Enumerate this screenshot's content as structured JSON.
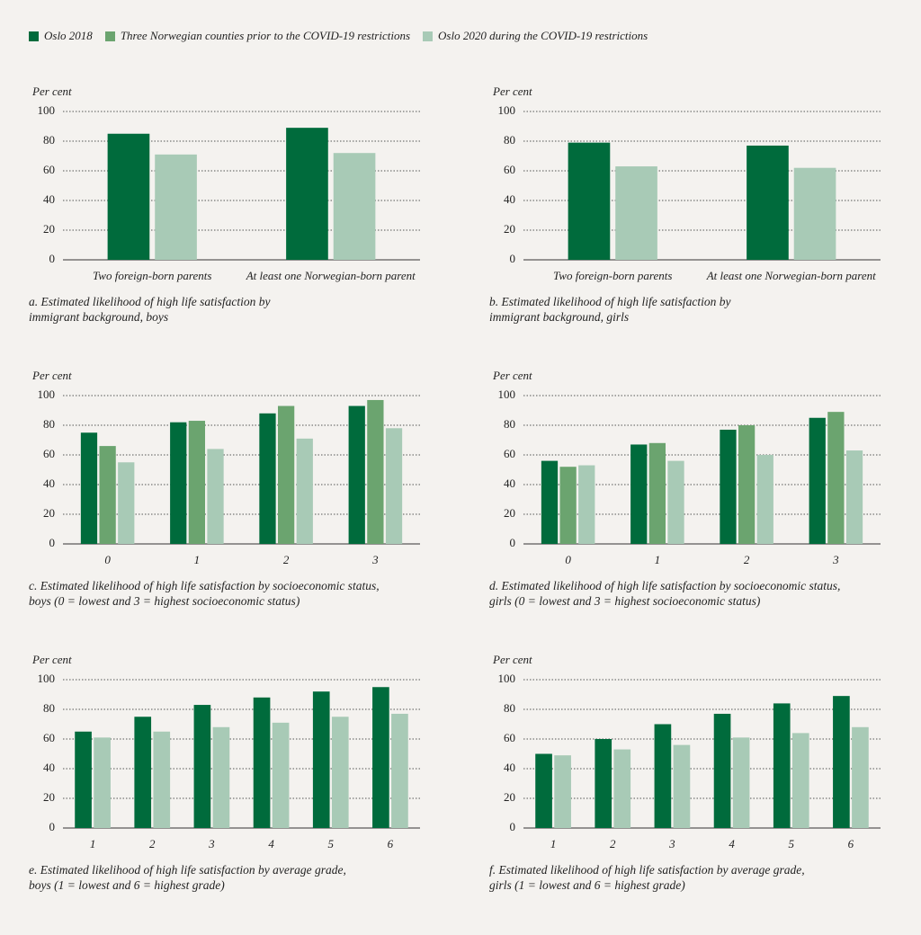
{
  "chart_data": [
    {
      "type": "bar",
      "title": "a. Estimated likelihood of high life satisfaction by immigrant background, boys",
      "ylabel": "Per cent",
      "categories": [
        "Two foreign-born parents",
        "At least one Norwegian-born parent"
      ],
      "series": [
        {
          "name": "Oslo 2018",
          "color": "#006b3c",
          "values": [
            85,
            89
          ]
        },
        {
          "name": "Oslo 2020 during the COVID-19 restrictions",
          "color": "#a8cab6",
          "values": [
            71,
            72
          ]
        }
      ],
      "ylim": [
        0,
        100
      ],
      "yticks": [
        0,
        20,
        40,
        60,
        80,
        100
      ],
      "grid": true
    },
    {
      "type": "bar",
      "title": "b. Estimated likelihood of high life satisfaction by immigrant background, girls",
      "ylabel": "Per cent",
      "categories": [
        "Two foreign-born parents",
        "At least one Norwegian-born parent"
      ],
      "series": [
        {
          "name": "Oslo 2018",
          "color": "#006b3c",
          "values": [
            79,
            77
          ]
        },
        {
          "name": "Oslo 2020 during the COVID-19 restrictions",
          "color": "#a8cab6",
          "values": [
            63,
            62
          ]
        }
      ],
      "ylim": [
        0,
        100
      ],
      "yticks": [
        0,
        20,
        40,
        60,
        80,
        100
      ],
      "grid": true
    },
    {
      "type": "bar",
      "title": "c. Estimated likelihood of high life satisfaction by socioeconomic status, boys (0 = lowest and 3 = highest socioeconomic status)",
      "ylabel": "Per cent",
      "categories": [
        "0",
        "1",
        "2",
        "3"
      ],
      "series": [
        {
          "name": "Oslo 2018",
          "color": "#006b3c",
          "values": [
            75,
            82,
            88,
            93
          ]
        },
        {
          "name": "Three Norwegian counties prior to the COVID-19 restrictions",
          "color": "#6ba46f",
          "values": [
            66,
            83,
            93,
            97
          ]
        },
        {
          "name": "Oslo 2020 during the COVID-19 restrictions",
          "color": "#a8cab6",
          "values": [
            55,
            64,
            71,
            78
          ]
        }
      ],
      "ylim": [
        0,
        100
      ],
      "yticks": [
        0,
        20,
        40,
        60,
        80,
        100
      ],
      "grid": true
    },
    {
      "type": "bar",
      "title": "d. Estimated likelihood of high life satisfaction by socioeconomic status, girls (0 = lowest and 3 = highest socioeconomic status)",
      "ylabel": "Per cent",
      "categories": [
        "0",
        "1",
        "2",
        "3"
      ],
      "series": [
        {
          "name": "Oslo 2018",
          "color": "#006b3c",
          "values": [
            56,
            67,
            77,
            85
          ]
        },
        {
          "name": "Three Norwegian counties prior to the COVID-19 restrictions",
          "color": "#6ba46f",
          "values": [
            52,
            68,
            80,
            89
          ]
        },
        {
          "name": "Oslo 2020 during the COVID-19 restrictions",
          "color": "#a8cab6",
          "values": [
            53,
            56,
            60,
            63
          ]
        }
      ],
      "ylim": [
        0,
        100
      ],
      "yticks": [
        0,
        20,
        40,
        60,
        80,
        100
      ],
      "grid": true
    },
    {
      "type": "bar",
      "title": "e. Estimated likelihood of high life satisfaction by average grade, boys (1 = lowest and 6 = highest grade)",
      "ylabel": "Per cent",
      "categories": [
        "1",
        "2",
        "3",
        "4",
        "5",
        "6"
      ],
      "series": [
        {
          "name": "Oslo 2018",
          "color": "#006b3c",
          "values": [
            65,
            75,
            83,
            88,
            92,
            95
          ]
        },
        {
          "name": "Oslo 2020 during the COVID-19 restrictions",
          "color": "#a8cab6",
          "values": [
            61,
            65,
            68,
            71,
            75,
            77
          ]
        }
      ],
      "ylim": [
        0,
        100
      ],
      "yticks": [
        0,
        20,
        40,
        60,
        80,
        100
      ],
      "grid": true
    },
    {
      "type": "bar",
      "title": "f. Estimated likelihood of high life satisfaction by average grade, girls (1 = lowest and 6 = highest grade)",
      "ylabel": "Per cent",
      "categories": [
        "1",
        "2",
        "3",
        "4",
        "5",
        "6"
      ],
      "series": [
        {
          "name": "Oslo 2018",
          "color": "#006b3c",
          "values": [
            50,
            60,
            70,
            77,
            84,
            89
          ]
        },
        {
          "name": "Oslo 2020 during the COVID-19 restrictions",
          "color": "#a8cab6",
          "values": [
            49,
            53,
            56,
            61,
            64,
            68
          ]
        }
      ],
      "ylim": [
        0,
        100
      ],
      "yticks": [
        0,
        20,
        40,
        60,
        80,
        100
      ],
      "grid": true
    }
  ]
}
